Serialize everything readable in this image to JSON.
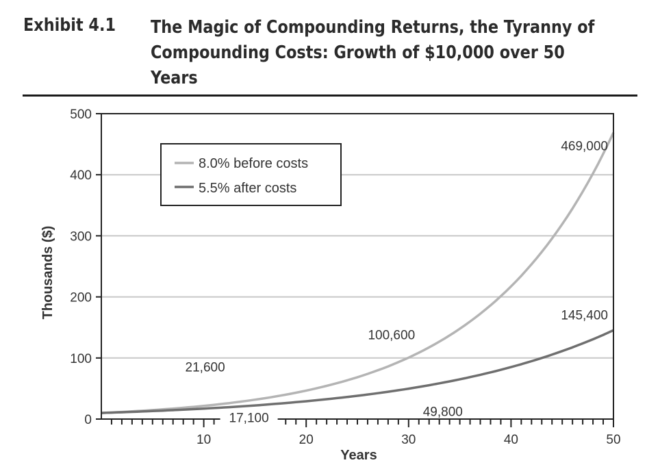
{
  "header": {
    "exhibit_label": "Exhibit 4.1",
    "title": "The Magic of Compounding Returns, the Tyranny of Compounding Costs: Growth of $10,000 over 50 Years"
  },
  "chart_data": {
    "type": "line",
    "title": "The Magic of Compounding Returns, the Tyranny of Compounding Costs: Growth of $10,000 over 50 Years",
    "xlabel": "Years",
    "ylabel": "Thousands ($)",
    "xlim": [
      0,
      50
    ],
    "ylim": [
      0,
      500
    ],
    "xticks": [
      10,
      20,
      30,
      40,
      50
    ],
    "yticks": [
      0,
      100,
      200,
      300,
      400,
      500
    ],
    "grid": true,
    "legend_position": "top-left",
    "series": [
      {
        "name": "8.0% before costs",
        "color": "#b4b4b4",
        "x": [
          0,
          5,
          10,
          15,
          20,
          25,
          30,
          35,
          40,
          45,
          50
        ],
        "y": [
          10,
          14.7,
          21.6,
          31.7,
          46.6,
          68.5,
          100.6,
          147.9,
          217.2,
          319.2,
          469
        ]
      },
      {
        "name": "5.5% after costs",
        "color": "#6f6f6f",
        "x": [
          0,
          5,
          10,
          15,
          20,
          25,
          30,
          35,
          40,
          45,
          50
        ],
        "y": [
          10,
          13.1,
          17.1,
          22.3,
          29.2,
          38.1,
          49.8,
          65.1,
          85.1,
          111.3,
          145.4
        ]
      }
    ],
    "annotations": [
      {
        "text": "469,000",
        "x": 50,
        "y": 469
      },
      {
        "text": "145,400",
        "x": 50,
        "y": 145.4
      },
      {
        "text": "100,600",
        "x": 30,
        "y": 100.6
      },
      {
        "text": "49,800",
        "x": 30,
        "y": 49.8
      },
      {
        "text": "21,600",
        "x": 10,
        "y": 21.6
      },
      {
        "text": "17,100",
        "x": 10,
        "y": 17.1
      }
    ]
  }
}
